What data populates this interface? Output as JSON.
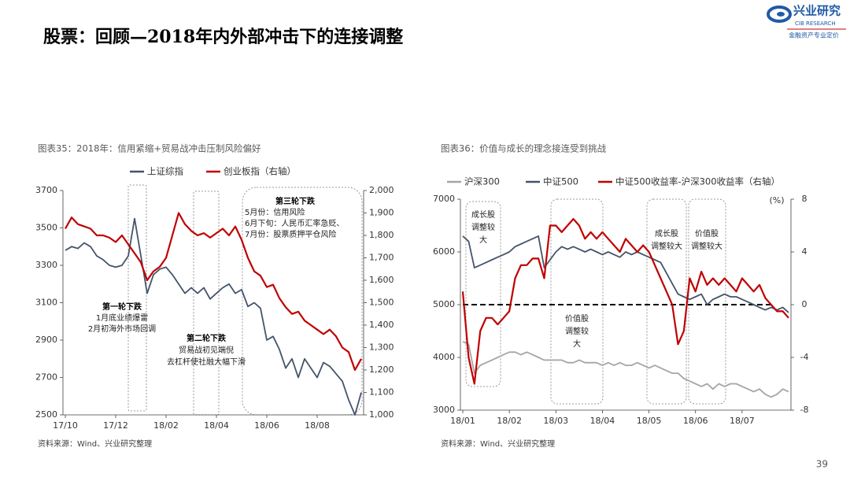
{
  "header": {
    "title": "股票：回顾—2018年内外部冲击下的连接调整",
    "logo_name": "兴业研究",
    "logo_en": "CIB RESEARCH",
    "logo_slogan": "金融资产专业定价"
  },
  "page_number": "39",
  "chart_data": [
    {
      "type": "line",
      "title": "图表35：2018年：信用紧缩+贸易战冲击压制风险偏好",
      "source": "资料来源：Wind、兴业研究整理",
      "categories": [
        "17/10",
        null,
        null,
        null,
        null,
        null,
        null,
        null,
        "17/12",
        null,
        null,
        null,
        null,
        null,
        null,
        null,
        "18/02",
        null,
        null,
        null,
        null,
        null,
        null,
        null,
        "18/04",
        null,
        null,
        null,
        null,
        null,
        null,
        null,
        "18/06",
        null,
        null,
        null,
        null,
        null,
        null,
        null,
        "18/08",
        null,
        null,
        null,
        null,
        null,
        null,
        null
      ],
      "series": [
        {
          "name": "上证综指",
          "color": "#44546a",
          "values": [
            3380,
            3400,
            3390,
            3420,
            3400,
            3350,
            3330,
            3300,
            3290,
            3300,
            3350,
            3550,
            3350,
            3150,
            3250,
            3280,
            3290,
            3250,
            3200,
            3150,
            3180,
            3150,
            3180,
            3120,
            3150,
            3180,
            3200,
            3150,
            3170,
            3080,
            3100,
            3070,
            2900,
            2920,
            2850,
            2750,
            2800,
            2700,
            2800,
            2750,
            2700,
            2780,
            2760,
            2720,
            2680,
            2580,
            2500,
            2620
          ]
        },
        {
          "name": "创业板指（右轴）",
          "color": "#c00000",
          "axis": "y2",
          "values": [
            1830,
            1880,
            1850,
            1840,
            1830,
            1800,
            1800,
            1790,
            1770,
            1800,
            1760,
            1720,
            1680,
            1600,
            1640,
            1660,
            1700,
            1800,
            1900,
            1850,
            1820,
            1800,
            1810,
            1790,
            1810,
            1830,
            1800,
            1840,
            1780,
            1700,
            1640,
            1620,
            1570,
            1580,
            1520,
            1480,
            1450,
            1460,
            1420,
            1400,
            1380,
            1360,
            1380,
            1350,
            1300,
            1280,
            1200,
            1250
          ]
        }
      ],
      "ylim": [
        2500,
        3700
      ],
      "yticks": [
        2500,
        2700,
        2900,
        3100,
        3300,
        3500,
        3700
      ],
      "y2lim": [
        1000,
        2000
      ],
      "y2ticks": [
        {
          "value": 1000,
          "label": "1,000"
        },
        {
          "value": 1100,
          "label": "1,100"
        },
        {
          "value": 1200,
          "label": "1,200"
        },
        {
          "value": 1300,
          "label": "1,300"
        },
        {
          "value": 1400,
          "label": "1,400"
        },
        {
          "value": 1500,
          "label": "1,500"
        },
        {
          "value": 1600,
          "label": "1,600"
        },
        {
          "value": 1700,
          "label": "1,700"
        },
        {
          "value": 1800,
          "label": "1,800"
        },
        {
          "value": 1900,
          "label": "1,900"
        },
        {
          "value": 2000,
          "label": "2,000"
        }
      ],
      "annotations": [
        {
          "lines": [
            "第一轮下跌",
            "1月底业绩爆雷",
            "2月初海外市场回调"
          ]
        },
        {
          "lines": [
            "第二轮下跌",
            "贸易战初见端倪",
            "去杠杆使社融大幅下滑"
          ]
        },
        {
          "lines": [
            "第三轮下跌",
            "5月份：信用风险",
            "6月下旬：人民币汇率急贬、",
            "7月份：股票质押平仓风险"
          ]
        }
      ]
    },
    {
      "type": "line",
      "title": "图表36：价值与成长的理念接连受到挑战",
      "source": "资料来源：Wind、兴业研究整理",
      "categories": [
        "18/01",
        null,
        null,
        null,
        null,
        null,
        null,
        null,
        "18/02",
        null,
        null,
        null,
        null,
        null,
        null,
        null,
        "18/03",
        null,
        null,
        null,
        null,
        null,
        null,
        null,
        "18/04",
        null,
        null,
        null,
        null,
        null,
        null,
        null,
        "18/05",
        null,
        null,
        null,
        null,
        null,
        null,
        null,
        "18/06",
        null,
        null,
        null,
        null,
        null,
        null,
        null,
        "18/07",
        null,
        null,
        null,
        null,
        null,
        null,
        null,
        null
      ],
      "series": [
        {
          "name": "沪深300",
          "color": "#a5a5a5",
          "values": [
            4300,
            4250,
            3700,
            3850,
            3900,
            3950,
            4000,
            4050,
            4100,
            4100,
            4050,
            4100,
            4050,
            4000,
            3950,
            3950,
            3950,
            3950,
            3900,
            3900,
            3950,
            3900,
            3900,
            3900,
            3850,
            3900,
            3850,
            3900,
            3850,
            3850,
            3900,
            3850,
            3800,
            3850,
            3800,
            3750,
            3700,
            3700,
            3600,
            3550,
            3500,
            3450,
            3500,
            3400,
            3500,
            3450,
            3500,
            3500,
            3450,
            3400,
            3350,
            3400,
            3300,
            3250,
            3300,
            3400,
            3350
          ]
        },
        {
          "name": "中证500",
          "color": "#44546a",
          "values": [
            6300,
            6200,
            5700,
            5750,
            5800,
            5850,
            5900,
            5950,
            6000,
            6100,
            6150,
            6200,
            6250,
            6300,
            5700,
            5850,
            6000,
            6100,
            6050,
            6100,
            6050,
            6000,
            6050,
            6000,
            5950,
            6000,
            5950,
            5900,
            6000,
            5950,
            6000,
            5950,
            5900,
            5850,
            5800,
            5600,
            5400,
            5200,
            5150,
            5100,
            5150,
            5200,
            5000,
            5100,
            5150,
            5200,
            5150,
            5150,
            5100,
            5050,
            5000,
            4950,
            4900,
            4950,
            4900,
            4950,
            4850
          ]
        },
        {
          "name": "中证500收益率-沪深300收益率（右轴）",
          "color": "#c00000",
          "axis": "y2",
          "values": [
            1.0,
            -4,
            -6,
            -2,
            -1,
            -1,
            -1.5,
            -1,
            -0.5,
            2,
            3,
            3,
            3.5,
            3.5,
            2,
            6,
            6,
            5.5,
            6,
            6.5,
            6,
            5,
            5.5,
            5,
            5.5,
            5,
            4.5,
            4,
            5,
            4.5,
            4,
            4.5,
            4,
            3,
            2,
            1,
            0,
            -3,
            -2,
            2,
            1,
            2.5,
            1.5,
            2,
            1.5,
            2,
            1.5,
            1,
            2,
            1.5,
            1,
            1.5,
            0.5,
            0,
            -0.5,
            -0.5,
            -1
          ]
        }
      ],
      "ylim": [
        3000,
        7000
      ],
      "yticks": [
        3000,
        4000,
        5000,
        6000,
        7000
      ],
      "y2lim": [
        -8,
        8
      ],
      "y2ticks": [
        -8,
        -4,
        0,
        4,
        8
      ],
      "y2label": "(%)",
      "reference_line_y2": 0,
      "annotations": [
        {
          "lines": [
            "成长股",
            "调整较",
            "大"
          ]
        },
        {
          "lines": [
            "价值股",
            "调整较",
            "大"
          ]
        },
        {
          "lines": [
            "成长股",
            "调整较大"
          ]
        },
        {
          "lines": [
            "价值股",
            "调整较大"
          ]
        }
      ]
    }
  ]
}
